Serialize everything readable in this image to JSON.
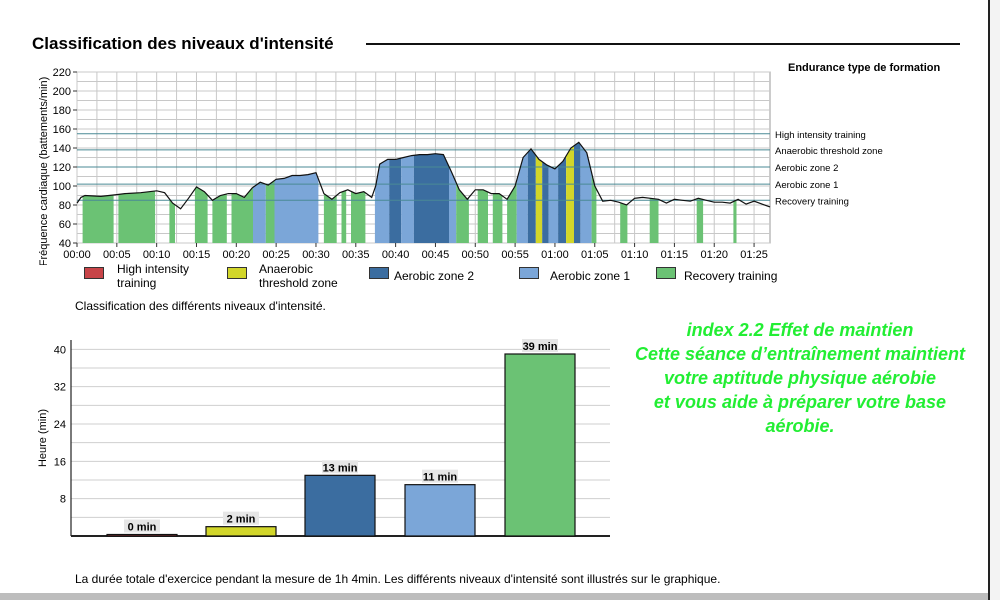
{
  "page": {
    "section_title": "Classification des niveaux d'intensité",
    "hr_caption": "Classification des différents niveaux d'intensité.",
    "summary": "La durée totale d'exercice pendant la mesure de 1h 4min. Les différents niveaux d'intensité sont illustrés sur le graphique."
  },
  "effect_text": {
    "line1": "index 2.2 Effet de maintien",
    "line2": "Cette séance d’entraînement maintient",
    "line3": "votre aptitude physique aérobie",
    "line4": "et vous aide à préparer votre base",
    "line5": "aérobie."
  },
  "colors": {
    "high": "#c84448",
    "anaerobic": "#d2d62a",
    "aerobic2": "#3b6da0",
    "aerobic1": "#7ba6d8",
    "recovery": "#6bc274",
    "grid": "#c8c8c8",
    "zone_line": "#4a8a95",
    "green_text": "#22ee33"
  },
  "chart_data": [
    {
      "type": "area",
      "title": "Endurance type de formation",
      "xlabel": "",
      "ylabel": "Fréquence cardiaque (battements/min)",
      "xlim": [
        0,
        87
      ],
      "ylim": [
        40,
        220
      ],
      "x_ticks": [
        "00:00",
        "00:05",
        "00:10",
        "00:15",
        "00:20",
        "00:25",
        "00:30",
        "00:35",
        "00:40",
        "00:45",
        "00:50",
        "00:55",
        "01:00",
        "01:05",
        "01:10",
        "01:15",
        "01:20",
        "01:25"
      ],
      "y_ticks": [
        40,
        60,
        80,
        100,
        120,
        140,
        160,
        180,
        200,
        220
      ],
      "zone_lines": [
        {
          "label": "High intensity training",
          "value": 155
        },
        {
          "label": "Anaerobic threshold zone",
          "value": 138
        },
        {
          "label": "Aerobic zone 2",
          "value": 120
        },
        {
          "label": "Aerobic zone 1",
          "value": 102
        },
        {
          "label": "Recovery training",
          "value": 85
        }
      ],
      "series": [
        {
          "name": "Fréquence cardiaque",
          "x": [
            0,
            0.5,
            1,
            3,
            5,
            6,
            8,
            10,
            11,
            12,
            13,
            14,
            15,
            16,
            17,
            18,
            19,
            20,
            21,
            22,
            23,
            24,
            25,
            26,
            27,
            28,
            29,
            30,
            31,
            32,
            33,
            34,
            35,
            36,
            37,
            37.5,
            38,
            39,
            40,
            41,
            42,
            43,
            44,
            45,
            46,
            47,
            48,
            49,
            50,
            51,
            52,
            53,
            54,
            55,
            56,
            57,
            58,
            59,
            60,
            61,
            62,
            63,
            64,
            65,
            66,
            67,
            68,
            69,
            70,
            71,
            72,
            73,
            74,
            75,
            76,
            77,
            78,
            79,
            80,
            81,
            82,
            83,
            84,
            85,
            86,
            87
          ],
          "values": [
            82,
            88,
            90,
            89,
            91,
            92,
            93,
            95,
            93,
            82,
            76,
            87,
            99,
            94,
            85,
            90,
            92,
            92,
            88,
            98,
            104,
            101,
            107,
            108,
            111,
            111,
            112,
            114,
            92,
            86,
            93,
            96,
            92,
            94,
            88,
            100,
            123,
            128,
            128,
            130,
            132,
            133,
            133,
            134,
            133,
            115,
            96,
            86,
            96,
            96,
            92,
            92,
            86,
            100,
            130,
            139,
            128,
            122,
            118,
            126,
            140,
            146,
            135,
            100,
            84,
            85,
            83,
            80,
            87,
            88,
            87,
            86,
            82,
            86,
            85,
            84,
            87,
            85,
            83,
            83,
            82,
            86,
            81,
            84,
            81,
            78
          ]
        }
      ],
      "zone_segments": [
        {
          "start": 0.7,
          "end": 4.6,
          "zone": "recovery"
        },
        {
          "start": 5.2,
          "end": 9.8,
          "zone": "recovery"
        },
        {
          "start": 11.6,
          "end": 12.3,
          "zone": "recovery"
        },
        {
          "start": 14.8,
          "end": 16.4,
          "zone": "recovery"
        },
        {
          "start": 17.0,
          "end": 18.8,
          "zone": "recovery"
        },
        {
          "start": 19.4,
          "end": 22.1,
          "zone": "recovery"
        },
        {
          "start": 22.1,
          "end": 23.7,
          "zone": "aerobic1"
        },
        {
          "start": 23.7,
          "end": 24.8,
          "zone": "recovery"
        },
        {
          "start": 24.8,
          "end": 30.3,
          "zone": "aerobic1"
        },
        {
          "start": 31.0,
          "end": 32.6,
          "zone": "recovery"
        },
        {
          "start": 33.2,
          "end": 33.8,
          "zone": "recovery"
        },
        {
          "start": 34.4,
          "end": 36.2,
          "zone": "recovery"
        },
        {
          "start": 37.4,
          "end": 39.2,
          "zone": "aerobic1"
        },
        {
          "start": 39.2,
          "end": 40.7,
          "zone": "aerobic2"
        },
        {
          "start": 40.7,
          "end": 42.3,
          "zone": "aerobic1"
        },
        {
          "start": 42.3,
          "end": 46.7,
          "zone": "aerobic2"
        },
        {
          "start": 46.7,
          "end": 47.6,
          "zone": "aerobic1"
        },
        {
          "start": 47.6,
          "end": 49.2,
          "zone": "recovery"
        },
        {
          "start": 50.3,
          "end": 51.6,
          "zone": "recovery"
        },
        {
          "start": 52.2,
          "end": 53.4,
          "zone": "recovery"
        },
        {
          "start": 54.0,
          "end": 55.2,
          "zone": "recovery"
        },
        {
          "start": 55.2,
          "end": 56.6,
          "zone": "aerobic1"
        },
        {
          "start": 56.6,
          "end": 57.6,
          "zone": "aerobic2"
        },
        {
          "start": 57.6,
          "end": 58.4,
          "zone": "anaerobic"
        },
        {
          "start": 58.4,
          "end": 59.2,
          "zone": "aerobic2"
        },
        {
          "start": 59.2,
          "end": 60.4,
          "zone": "aerobic1"
        },
        {
          "start": 60.4,
          "end": 61.4,
          "zone": "aerobic2"
        },
        {
          "start": 61.4,
          "end": 62.4,
          "zone": "anaerobic"
        },
        {
          "start": 62.4,
          "end": 63.2,
          "zone": "aerobic2"
        },
        {
          "start": 63.2,
          "end": 64.6,
          "zone": "aerobic1"
        },
        {
          "start": 64.6,
          "end": 65.2,
          "zone": "recovery"
        },
        {
          "start": 68.2,
          "end": 69.1,
          "zone": "recovery"
        },
        {
          "start": 71.9,
          "end": 73.0,
          "zone": "recovery"
        },
        {
          "start": 77.8,
          "end": 78.6,
          "zone": "recovery"
        },
        {
          "start": 82.4,
          "end": 82.8,
          "zone": "recovery"
        }
      ]
    },
    {
      "type": "bar",
      "title": "",
      "xlabel": "",
      "ylabel": "Heure (min)",
      "ylim": [
        0,
        42
      ],
      "y_ticks": [
        8,
        16,
        24,
        32,
        40
      ],
      "categories": [
        "High intensity training",
        "Anaerobic threshold zone",
        "Aerobic zone 2",
        "Aerobic zone 1",
        "Recovery training"
      ],
      "values": [
        0,
        2,
        13,
        11,
        39
      ],
      "value_labels": [
        "0 min",
        "2 min",
        "13 min",
        "11 min",
        "39 min"
      ]
    }
  ],
  "legend": [
    {
      "key": "high",
      "label": "High intensity training"
    },
    {
      "key": "anaerobic",
      "label": "Anaerobic threshold zone"
    },
    {
      "key": "aerobic2",
      "label": "Aerobic zone 2"
    },
    {
      "key": "aerobic1",
      "label": "Aerobic zone 1"
    },
    {
      "key": "recovery",
      "label": "Recovery training"
    }
  ]
}
